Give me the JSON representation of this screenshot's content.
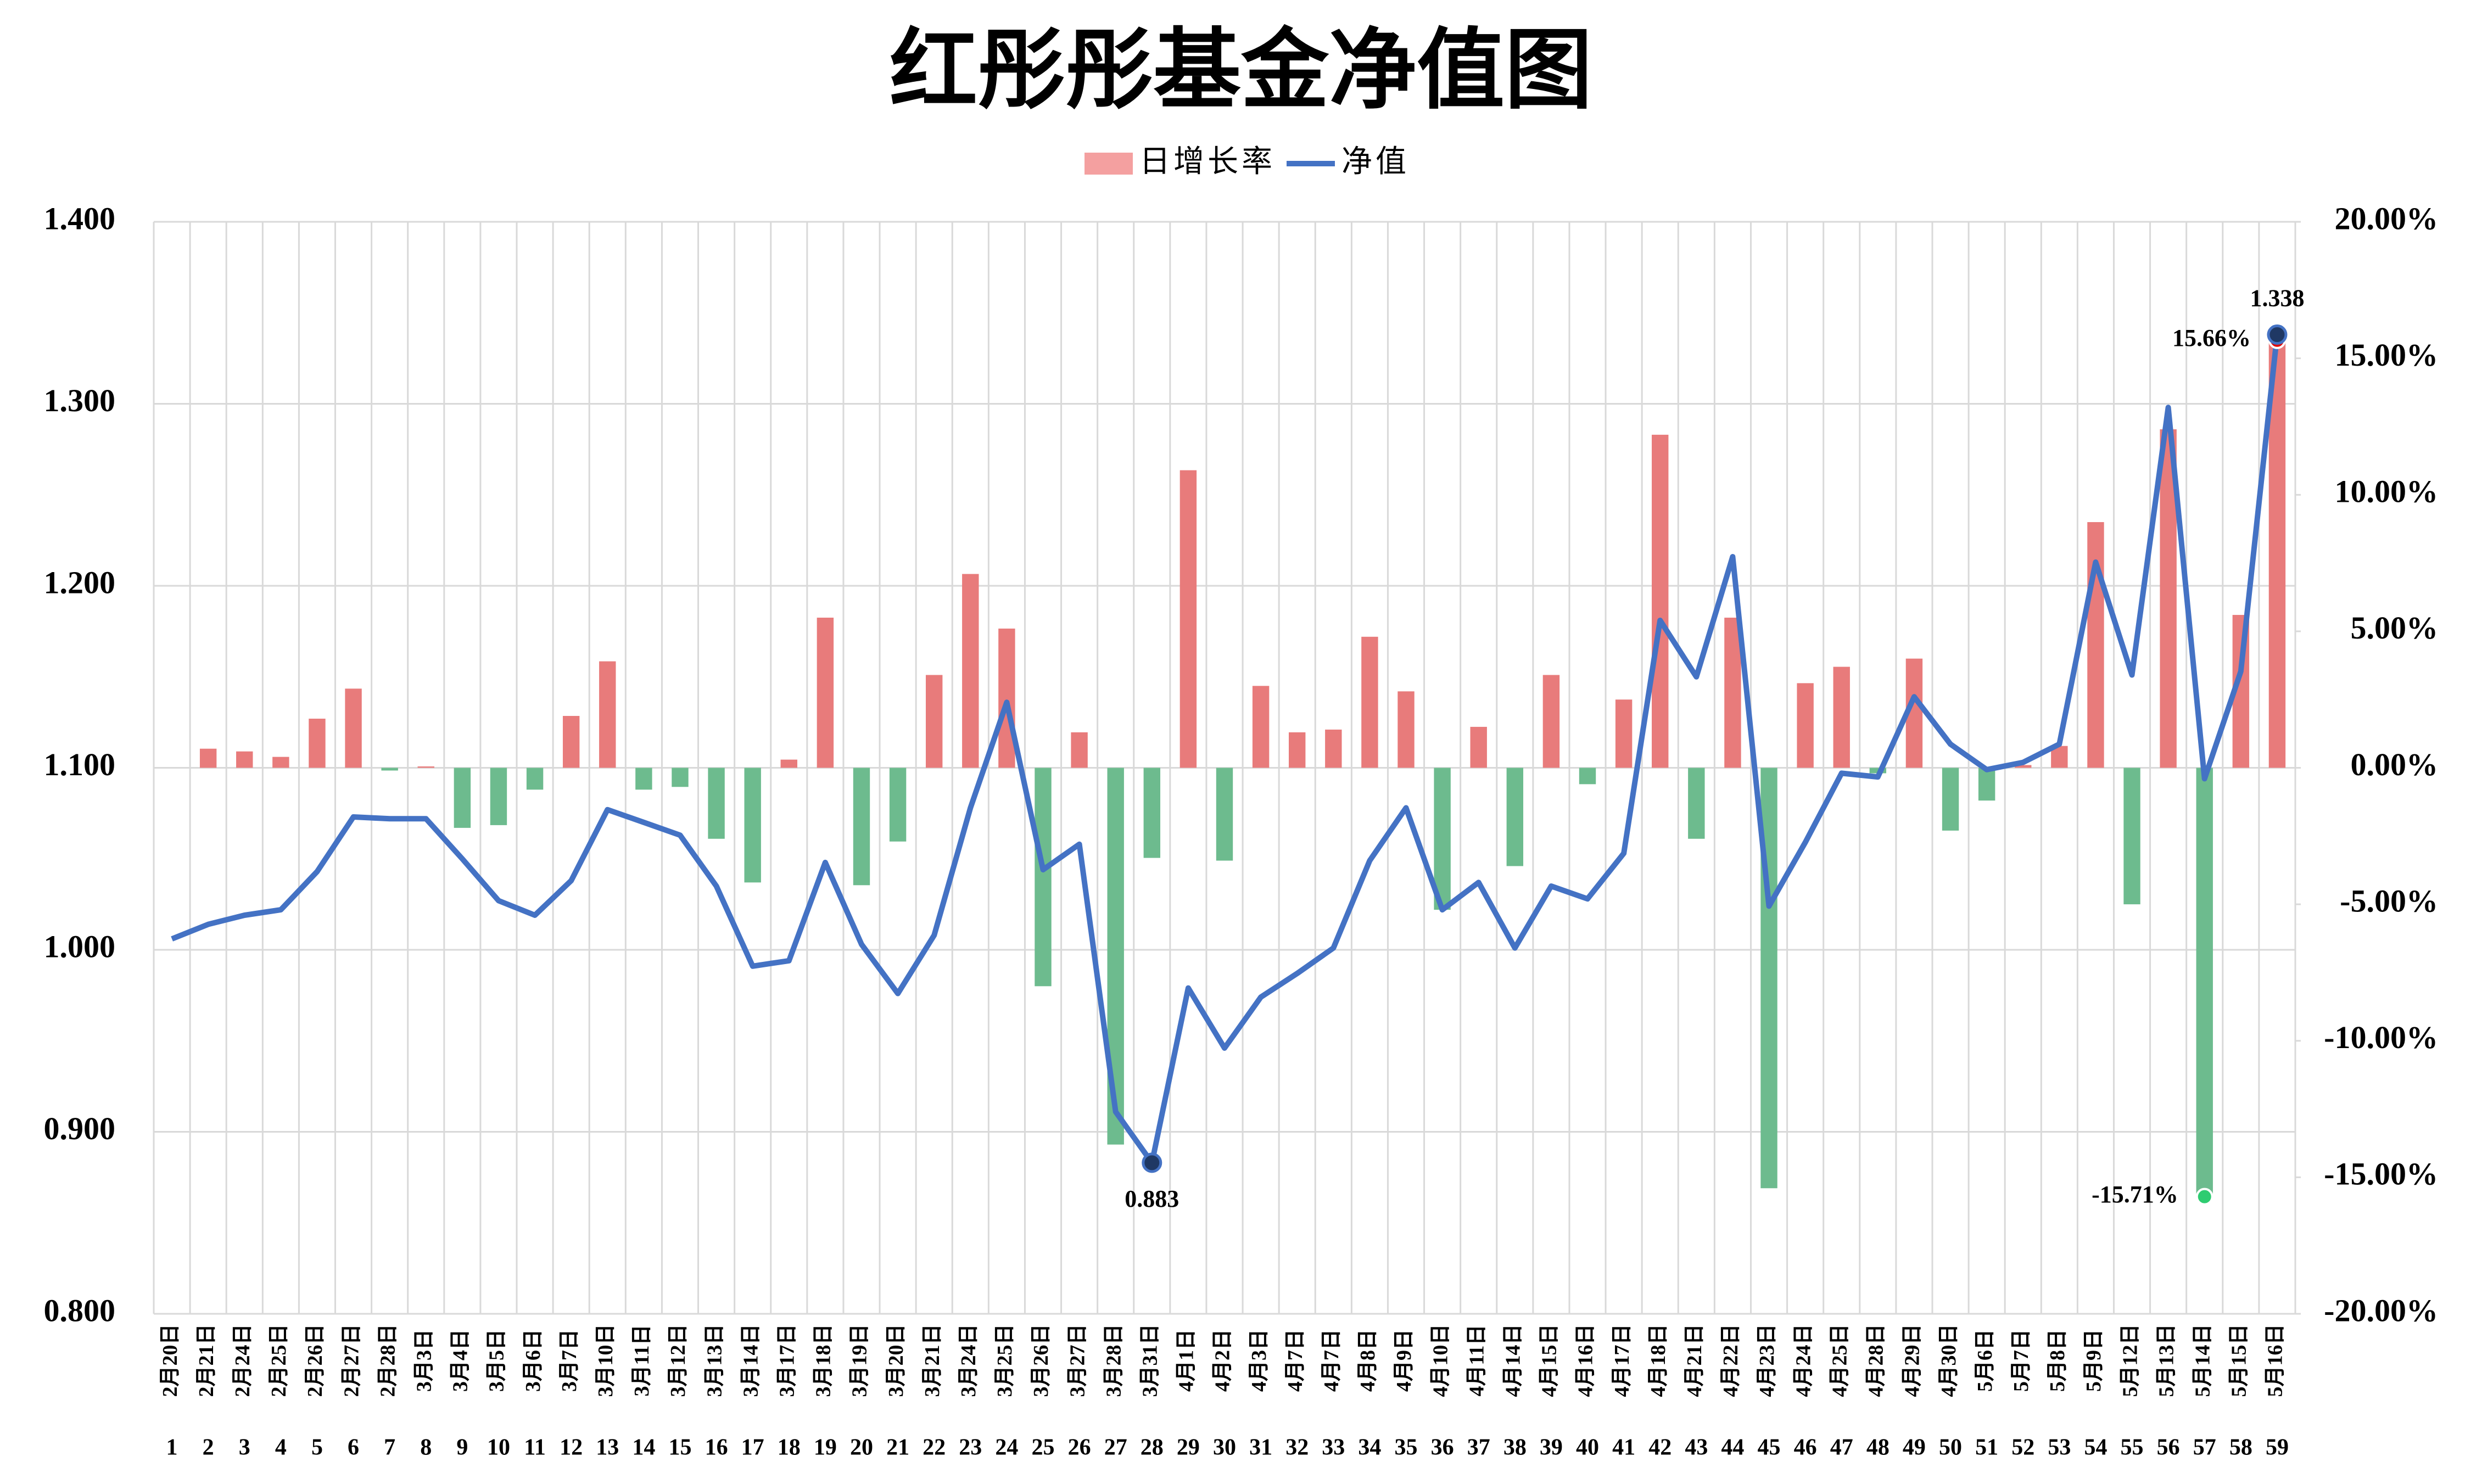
{
  "chart_data": {
    "type": "combo",
    "title": "红彤彤基金净值图",
    "categories": [
      "2月20日",
      "2月21日",
      "2月24日",
      "2月25日",
      "2月26日",
      "2月27日",
      "2月28日",
      "3月3日",
      "3月4日",
      "3月5日",
      "3月6日",
      "3月7日",
      "3月10日",
      "3月11日",
      "3月12日",
      "3月13日",
      "3月14日",
      "3月17日",
      "3月18日",
      "3月19日",
      "3月20日",
      "3月21日",
      "3月24日",
      "3月25日",
      "3月26日",
      "3月27日",
      "3月28日",
      "3月31日",
      "4月1日",
      "4月2日",
      "4月3日",
      "4月7日",
      "4月7日",
      "4月8日",
      "4月9日",
      "4月10日",
      "4月11日",
      "4月14日",
      "4月15日",
      "4月16日",
      "4月17日",
      "4月18日",
      "4月21日",
      "4月22日",
      "4月23日",
      "4月24日",
      "4月25日",
      "4月28日",
      "4月29日",
      "4月30日",
      "5月6日",
      "5月7日",
      "5月8日",
      "5月9日",
      "5月12日",
      "5月13日",
      "5月14日",
      "5月15日",
      "5月16日"
    ],
    "category_numbers": [
      1,
      2,
      3,
      4,
      5,
      6,
      7,
      8,
      9,
      10,
      11,
      12,
      13,
      14,
      15,
      16,
      17,
      18,
      19,
      20,
      21,
      22,
      23,
      24,
      25,
      26,
      27,
      28,
      29,
      30,
      31,
      32,
      33,
      34,
      35,
      36,
      37,
      38,
      39,
      40,
      41,
      42,
      43,
      44,
      45,
      46,
      47,
      48,
      49,
      50,
      51,
      52,
      53,
      54,
      55,
      56,
      57,
      58,
      59
    ],
    "series": [
      {
        "name": "日增长率",
        "type": "bar",
        "axis": "y2",
        "color": "#e87b7b",
        "negative_color": "#6dbb8e",
        "legend_color": "#f4a0a0",
        "values": [
          0,
          0.7,
          0.6,
          0.4,
          1.8,
          2.9,
          -0.1,
          0.05,
          -2.2,
          -2.1,
          -0.8,
          1.9,
          3.9,
          -0.8,
          -0.7,
          -2.6,
          -4.2,
          0.3,
          5.5,
          -4.3,
          -2.7,
          3.4,
          7.1,
          5.1,
          -8.0,
          1.3,
          -13.8,
          -3.3,
          10.9,
          -3.4,
          3.0,
          1.3,
          1.4,
          4.8,
          2.8,
          -5.2,
          1.5,
          -3.6,
          3.4,
          -0.6,
          2.5,
          12.2,
          -2.6,
          5.5,
          -15.4,
          3.1,
          3.7,
          -0.2,
          4.0,
          -2.3,
          -1.2,
          0.1,
          0.8,
          9.0,
          -5.0,
          12.4,
          -15.71,
          5.6,
          15.66
        ],
        "value_labels": [
          null,
          null,
          null,
          null,
          null,
          null,
          null,
          null,
          null,
          null,
          null,
          null,
          null,
          null,
          null,
          null,
          null,
          null,
          null,
          null,
          null,
          null,
          null,
          null,
          null,
          null,
          null,
          null,
          null,
          null,
          null,
          null,
          null,
          null,
          null,
          null,
          null,
          null,
          null,
          null,
          null,
          null,
          null,
          null,
          null,
          null,
          null,
          null,
          null,
          null,
          null,
          null,
          null,
          null,
          null,
          null,
          "-15.71%",
          null,
          "15.66%"
        ]
      },
      {
        "name": "净值",
        "type": "line",
        "color": "#4472c4",
        "values": [
          1.006,
          1.014,
          1.019,
          1.022,
          1.043,
          1.073,
          1.072,
          1.072,
          1.05,
          1.027,
          1.019,
          1.038,
          1.077,
          1.07,
          1.063,
          1.035,
          0.991,
          0.994,
          1.048,
          1.003,
          0.976,
          1.008,
          1.078,
          1.136,
          1.044,
          1.058,
          0.911,
          0.883,
          0.979,
          0.946,
          0.974,
          0.987,
          1.001,
          1.049,
          1.078,
          1.022,
          1.037,
          1.001,
          1.035,
          1.028,
          1.053,
          1.181,
          1.15,
          1.216,
          1.024,
          1.059,
          1.097,
          1.095,
          1.139,
          1.113,
          1.099,
          1.103,
          1.113,
          1.213,
          1.151,
          1.298,
          1.094,
          1.153,
          1.338
        ],
        "value_labels": [
          null,
          null,
          null,
          null,
          null,
          null,
          null,
          null,
          null,
          null,
          null,
          null,
          null,
          null,
          null,
          null,
          null,
          null,
          null,
          null,
          null,
          null,
          null,
          null,
          null,
          null,
          null,
          "0.883",
          null,
          null,
          null,
          null,
          null,
          null,
          null,
          null,
          null,
          null,
          null,
          null,
          null,
          null,
          null,
          null,
          null,
          null,
          null,
          null,
          null,
          null,
          null,
          null,
          null,
          null,
          null,
          null,
          null,
          null,
          "1.338"
        ]
      }
    ],
    "ylim": [
      0.8,
      1.4
    ],
    "yticks": [
      {
        "value": 0.8,
        "label": "0.800"
      },
      {
        "value": 0.9,
        "label": "0.900"
      },
      {
        "value": 1.0,
        "label": "1.000"
      },
      {
        "value": 1.1,
        "label": "1.100"
      },
      {
        "value": 1.2,
        "label": "1.200"
      },
      {
        "value": 1.3,
        "label": "1.300"
      },
      {
        "value": 1.4,
        "label": "1.400"
      }
    ],
    "y2lim": [
      -20,
      20
    ],
    "y2ticks": [
      {
        "value": -20,
        "label": "-20.00%"
      },
      {
        "value": -15,
        "label": "-15.00%"
      },
      {
        "value": -10,
        "label": "-10.00%"
      },
      {
        "value": -5,
        "label": "-5.00%"
      },
      {
        "value": 0,
        "label": "0.00%"
      },
      {
        "value": 5,
        "label": "5.00%"
      },
      {
        "value": 10,
        "label": "10.00%"
      },
      {
        "value": 15,
        "label": "15.00%"
      },
      {
        "value": 20,
        "label": "20.00%"
      }
    ],
    "grid": true,
    "legend": "top"
  }
}
